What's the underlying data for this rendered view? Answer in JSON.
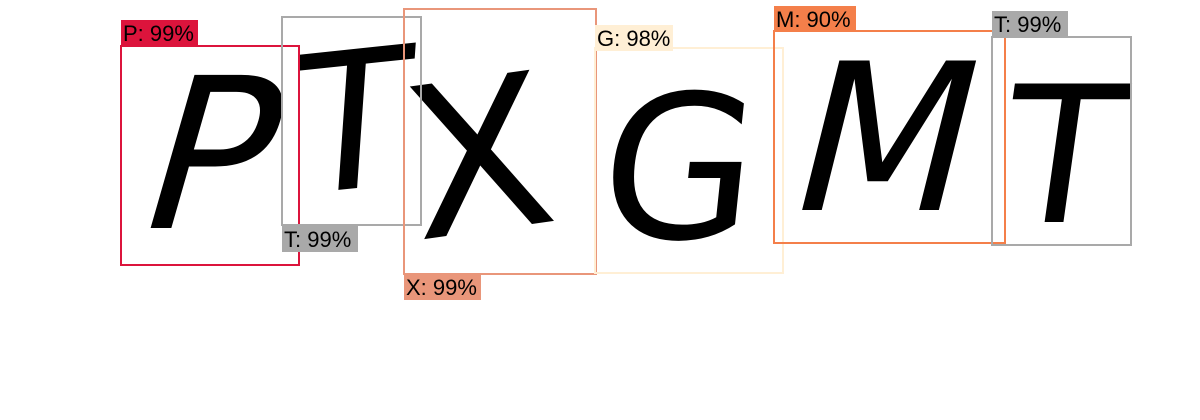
{
  "captcha_text": "PTXGMT",
  "detections": [
    {
      "label": "P",
      "confidence": "99%",
      "caption": "P: 99%",
      "color": "#dc143c",
      "tag_text_color": "#000000"
    },
    {
      "label": "T",
      "confidence": "99%",
      "caption": "T: 99%",
      "color": "#a9a9a9",
      "tag_text_color": "#000000"
    },
    {
      "label": "X",
      "confidence": "99%",
      "caption": "X: 99%",
      "color": "#e9967a",
      "tag_text_color": "#000000"
    },
    {
      "label": "G",
      "confidence": "98%",
      "caption": "G: 98%",
      "color": "#ffefd5",
      "tag_text_color": "#000000"
    },
    {
      "label": "M",
      "confidence": "90%",
      "caption": "M: 90%",
      "color": "#f47f4a",
      "tag_text_color": "#000000"
    },
    {
      "label": "T",
      "confidence": "99%",
      "caption": "T: 99%",
      "color": "#a9a9a9",
      "tag_text_color": "#000000"
    }
  ]
}
